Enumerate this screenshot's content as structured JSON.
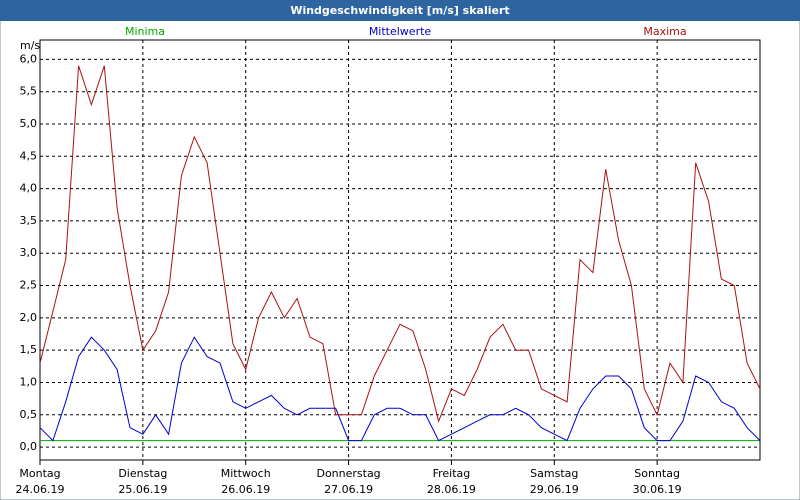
{
  "chart_data": {
    "type": "line",
    "title": "Windgeschwindigkeit [m/s] skaliert",
    "y_label": "m/s",
    "x": [
      0,
      0.125,
      0.25,
      0.375,
      0.5,
      0.625,
      0.75,
      0.875,
      1,
      1.125,
      1.25,
      1.375,
      1.5,
      1.625,
      1.75,
      1.875,
      2,
      2.125,
      2.25,
      2.375,
      2.5,
      2.625,
      2.75,
      2.875,
      3,
      3.125,
      3.25,
      3.375,
      3.5,
      3.625,
      3.75,
      3.875,
      4,
      4.125,
      4.25,
      4.375,
      4.5,
      4.625,
      4.75,
      4.875,
      5,
      5.125,
      5.25,
      5.375,
      5.5,
      5.625,
      5.75,
      5.875,
      6,
      6.125,
      6.25,
      6.375,
      6.5,
      6.625,
      6.75,
      6.875,
      7
    ],
    "series": [
      {
        "name": "Minima",
        "color": "#00aa00",
        "values": [
          0.1,
          0.1,
          0.1,
          0.1,
          0.1,
          0.1,
          0.1,
          0.1,
          0.1,
          0.1,
          0.1,
          0.1,
          0.1,
          0.1,
          0.1,
          0.1,
          0.1,
          0.1,
          0.1,
          0.1,
          0.1,
          0.1,
          0.1,
          0.1,
          0.1,
          0.1,
          0.1,
          0.1,
          0.1,
          0.1,
          0.1,
          0.1,
          0.1,
          0.1,
          0.1,
          0.1,
          0.1,
          0.1,
          0.1,
          0.1,
          0.1,
          0.1,
          0.1,
          0.1,
          0.1,
          0.1,
          0.1,
          0.1,
          0.1,
          0.1,
          0.1,
          0.1,
          0.1,
          0.1,
          0.1,
          0.1,
          0.1
        ]
      },
      {
        "name": "Mittelwerte",
        "color": "#0000cc",
        "values": [
          0.3,
          0.1,
          0.7,
          1.4,
          1.7,
          1.5,
          1.2,
          0.3,
          0.2,
          0.5,
          0.2,
          1.3,
          1.7,
          1.4,
          1.3,
          0.7,
          0.6,
          0.7,
          0.8,
          0.6,
          0.5,
          0.6,
          0.6,
          0.6,
          0.1,
          0.1,
          0.5,
          0.6,
          0.6,
          0.5,
          0.5,
          0.1,
          0.2,
          0.3,
          0.4,
          0.5,
          0.5,
          0.6,
          0.5,
          0.3,
          0.2,
          0.1,
          0.6,
          0.9,
          1.1,
          1.1,
          0.9,
          0.3,
          0.1,
          0.1,
          0.4,
          1.1,
          1.0,
          0.7,
          0.6,
          0.3,
          0.1
        ]
      },
      {
        "name": "Maxima",
        "color": "#aa1111",
        "values": [
          1.3,
          2.1,
          2.9,
          5.9,
          5.3,
          5.9,
          3.7,
          2.5,
          1.5,
          1.8,
          2.4,
          4.2,
          4.8,
          4.4,
          3.0,
          1.6,
          1.2,
          2.0,
          2.4,
          2.0,
          2.3,
          1.7,
          1.6,
          0.5,
          0.5,
          0.5,
          1.1,
          1.5,
          1.9,
          1.8,
          1.2,
          0.4,
          0.9,
          0.8,
          1.2,
          1.7,
          1.9,
          1.5,
          1.5,
          0.9,
          0.8,
          0.7,
          2.9,
          2.7,
          4.3,
          3.2,
          2.5,
          0.9,
          0.5,
          1.3,
          1.0,
          4.4,
          3.8,
          2.6,
          2.5,
          1.3,
          0.9
        ]
      }
    ],
    "xlim": [
      0,
      7
    ],
    "xticks": [
      {
        "value": 0,
        "label": [
          "Montag",
          "24.06.19"
        ]
      },
      {
        "value": 1,
        "label": [
          "Dienstag",
          "25.06.19"
        ]
      },
      {
        "value": 2,
        "label": [
          "Mittwoch",
          "26.06.19"
        ]
      },
      {
        "value": 3,
        "label": [
          "Donnerstag",
          "27.06.19"
        ]
      },
      {
        "value": 4,
        "label": [
          "Freitag",
          "28.06.19"
        ]
      },
      {
        "value": 5,
        "label": [
          "Samstag",
          "29.06.19"
        ]
      },
      {
        "value": 6,
        "label": [
          "Sonntag",
          "30.06.19"
        ]
      }
    ],
    "ylim": [
      -0.2,
      6.3
    ],
    "yticks": [
      {
        "value": 0,
        "label": "0,0"
      },
      {
        "value": 0.5,
        "label": "0,5"
      },
      {
        "value": 1,
        "label": "1,0"
      },
      {
        "value": 1.5,
        "label": "1,5"
      },
      {
        "value": 2,
        "label": "2,0"
      },
      {
        "value": 2.5,
        "label": "2,5"
      },
      {
        "value": 3,
        "label": "3,0"
      },
      {
        "value": 3.5,
        "label": "3,5"
      },
      {
        "value": 4,
        "label": "4,0"
      },
      {
        "value": 4.5,
        "label": "4,5"
      },
      {
        "value": 5,
        "label": "5,0"
      },
      {
        "value": 5.5,
        "label": "5,5"
      },
      {
        "value": 6,
        "label": "6,0"
      }
    ],
    "grid": true
  }
}
